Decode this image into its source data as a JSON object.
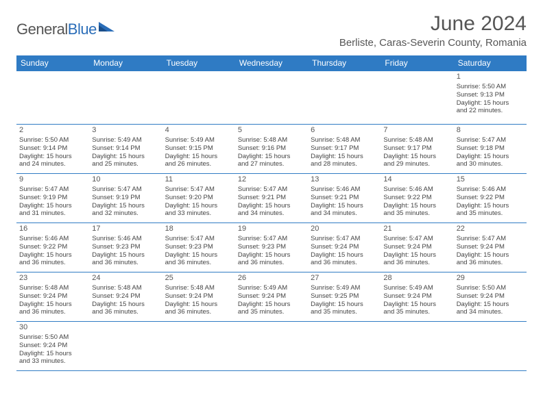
{
  "logo": {
    "word1": "General",
    "word2": "Blue"
  },
  "title": "June 2024",
  "location": "Berliste, Caras-Severin County, Romania",
  "header_bg": "#2f7bc4",
  "days_of_week": [
    "Sunday",
    "Monday",
    "Tuesday",
    "Wednesday",
    "Thursday",
    "Friday",
    "Saturday"
  ],
  "weeks": [
    [
      null,
      null,
      null,
      null,
      null,
      null,
      {
        "n": "1",
        "sr": "Sunrise: 5:50 AM",
        "ss": "Sunset: 9:13 PM",
        "d1": "Daylight: 15 hours",
        "d2": "and 22 minutes."
      }
    ],
    [
      {
        "n": "2",
        "sr": "Sunrise: 5:50 AM",
        "ss": "Sunset: 9:14 PM",
        "d1": "Daylight: 15 hours",
        "d2": "and 24 minutes."
      },
      {
        "n": "3",
        "sr": "Sunrise: 5:49 AM",
        "ss": "Sunset: 9:14 PM",
        "d1": "Daylight: 15 hours",
        "d2": "and 25 minutes."
      },
      {
        "n": "4",
        "sr": "Sunrise: 5:49 AM",
        "ss": "Sunset: 9:15 PM",
        "d1": "Daylight: 15 hours",
        "d2": "and 26 minutes."
      },
      {
        "n": "5",
        "sr": "Sunrise: 5:48 AM",
        "ss": "Sunset: 9:16 PM",
        "d1": "Daylight: 15 hours",
        "d2": "and 27 minutes."
      },
      {
        "n": "6",
        "sr": "Sunrise: 5:48 AM",
        "ss": "Sunset: 9:17 PM",
        "d1": "Daylight: 15 hours",
        "d2": "and 28 minutes."
      },
      {
        "n": "7",
        "sr": "Sunrise: 5:48 AM",
        "ss": "Sunset: 9:17 PM",
        "d1": "Daylight: 15 hours",
        "d2": "and 29 minutes."
      },
      {
        "n": "8",
        "sr": "Sunrise: 5:47 AM",
        "ss": "Sunset: 9:18 PM",
        "d1": "Daylight: 15 hours",
        "d2": "and 30 minutes."
      }
    ],
    [
      {
        "n": "9",
        "sr": "Sunrise: 5:47 AM",
        "ss": "Sunset: 9:19 PM",
        "d1": "Daylight: 15 hours",
        "d2": "and 31 minutes."
      },
      {
        "n": "10",
        "sr": "Sunrise: 5:47 AM",
        "ss": "Sunset: 9:19 PM",
        "d1": "Daylight: 15 hours",
        "d2": "and 32 minutes."
      },
      {
        "n": "11",
        "sr": "Sunrise: 5:47 AM",
        "ss": "Sunset: 9:20 PM",
        "d1": "Daylight: 15 hours",
        "d2": "and 33 minutes."
      },
      {
        "n": "12",
        "sr": "Sunrise: 5:47 AM",
        "ss": "Sunset: 9:21 PM",
        "d1": "Daylight: 15 hours",
        "d2": "and 34 minutes."
      },
      {
        "n": "13",
        "sr": "Sunrise: 5:46 AM",
        "ss": "Sunset: 9:21 PM",
        "d1": "Daylight: 15 hours",
        "d2": "and 34 minutes."
      },
      {
        "n": "14",
        "sr": "Sunrise: 5:46 AM",
        "ss": "Sunset: 9:22 PM",
        "d1": "Daylight: 15 hours",
        "d2": "and 35 minutes."
      },
      {
        "n": "15",
        "sr": "Sunrise: 5:46 AM",
        "ss": "Sunset: 9:22 PM",
        "d1": "Daylight: 15 hours",
        "d2": "and 35 minutes."
      }
    ],
    [
      {
        "n": "16",
        "sr": "Sunrise: 5:46 AM",
        "ss": "Sunset: 9:22 PM",
        "d1": "Daylight: 15 hours",
        "d2": "and 36 minutes."
      },
      {
        "n": "17",
        "sr": "Sunrise: 5:46 AM",
        "ss": "Sunset: 9:23 PM",
        "d1": "Daylight: 15 hours",
        "d2": "and 36 minutes."
      },
      {
        "n": "18",
        "sr": "Sunrise: 5:47 AM",
        "ss": "Sunset: 9:23 PM",
        "d1": "Daylight: 15 hours",
        "d2": "and 36 minutes."
      },
      {
        "n": "19",
        "sr": "Sunrise: 5:47 AM",
        "ss": "Sunset: 9:23 PM",
        "d1": "Daylight: 15 hours",
        "d2": "and 36 minutes."
      },
      {
        "n": "20",
        "sr": "Sunrise: 5:47 AM",
        "ss": "Sunset: 9:24 PM",
        "d1": "Daylight: 15 hours",
        "d2": "and 36 minutes."
      },
      {
        "n": "21",
        "sr": "Sunrise: 5:47 AM",
        "ss": "Sunset: 9:24 PM",
        "d1": "Daylight: 15 hours",
        "d2": "and 36 minutes."
      },
      {
        "n": "22",
        "sr": "Sunrise: 5:47 AM",
        "ss": "Sunset: 9:24 PM",
        "d1": "Daylight: 15 hours",
        "d2": "and 36 minutes."
      }
    ],
    [
      {
        "n": "23",
        "sr": "Sunrise: 5:48 AM",
        "ss": "Sunset: 9:24 PM",
        "d1": "Daylight: 15 hours",
        "d2": "and 36 minutes."
      },
      {
        "n": "24",
        "sr": "Sunrise: 5:48 AM",
        "ss": "Sunset: 9:24 PM",
        "d1": "Daylight: 15 hours",
        "d2": "and 36 minutes."
      },
      {
        "n": "25",
        "sr": "Sunrise: 5:48 AM",
        "ss": "Sunset: 9:24 PM",
        "d1": "Daylight: 15 hours",
        "d2": "and 36 minutes."
      },
      {
        "n": "26",
        "sr": "Sunrise: 5:49 AM",
        "ss": "Sunset: 9:24 PM",
        "d1": "Daylight: 15 hours",
        "d2": "and 35 minutes."
      },
      {
        "n": "27",
        "sr": "Sunrise: 5:49 AM",
        "ss": "Sunset: 9:25 PM",
        "d1": "Daylight: 15 hours",
        "d2": "and 35 minutes."
      },
      {
        "n": "28",
        "sr": "Sunrise: 5:49 AM",
        "ss": "Sunset: 9:24 PM",
        "d1": "Daylight: 15 hours",
        "d2": "and 35 minutes."
      },
      {
        "n": "29",
        "sr": "Sunrise: 5:50 AM",
        "ss": "Sunset: 9:24 PM",
        "d1": "Daylight: 15 hours",
        "d2": "and 34 minutes."
      }
    ],
    [
      {
        "n": "30",
        "sr": "Sunrise: 5:50 AM",
        "ss": "Sunset: 9:24 PM",
        "d1": "Daylight: 15 hours",
        "d2": "and 33 minutes."
      },
      null,
      null,
      null,
      null,
      null,
      null
    ]
  ]
}
